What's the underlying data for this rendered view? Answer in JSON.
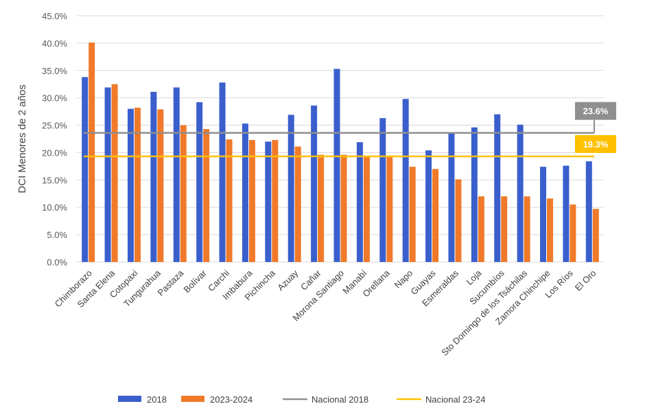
{
  "chart_data": {
    "type": "bar",
    "ylabel": "DCI Menores de 2 años",
    "ylim": [
      0,
      45
    ],
    "yticks": [
      0,
      5,
      10,
      15,
      20,
      25,
      30,
      35,
      40,
      45
    ],
    "ytick_labels": [
      "0.0%",
      "5.0%",
      "10.0%",
      "15.0%",
      "20.0%",
      "25.0%",
      "30.0%",
      "35.0%",
      "40.0%",
      "45.0%"
    ],
    "grid": true,
    "legend_position": "bottom",
    "categories": [
      "Chimborazo",
      "Santa Elena",
      "Cotopaxi",
      "Tungurahua",
      "Pastaza",
      "Bolívar",
      "Carchi",
      "Imbabura",
      "Pichincha",
      "Azuay",
      "Cañar",
      "Morona Santiago",
      "Manabí",
      "Orellana",
      "Napo",
      "Guayas",
      "Esmeraldas",
      "Loja",
      "Sucumbíos",
      "Sto Domingo de los Tsáchilas",
      "Zamora Chinchipe",
      "Los Ríos",
      "El Oro"
    ],
    "series": [
      {
        "name": "2018",
        "color": "#3a5fcd",
        "values": [
          33.8,
          31.9,
          28.0,
          31.1,
          31.9,
          29.2,
          32.8,
          25.3,
          22.0,
          26.9,
          28.6,
          35.3,
          21.9,
          26.3,
          29.8,
          20.4,
          23.5,
          24.6,
          27.0,
          25.1,
          17.4,
          17.6,
          18.4
        ]
      },
      {
        "name": "2023-2024",
        "color": "#f07a2a",
        "values": [
          40.1,
          32.5,
          28.2,
          27.9,
          25.0,
          24.3,
          22.4,
          22.3,
          22.3,
          21.1,
          19.6,
          19.6,
          19.3,
          19.3,
          17.4,
          17.0,
          15.1,
          12.0,
          12.0,
          12.0,
          11.6,
          10.5,
          9.7
        ]
      }
    ],
    "reference_lines": [
      {
        "name": "Nacional 2018",
        "value": 23.6,
        "label": "23.6%",
        "color": "#8f8f8f"
      },
      {
        "name": "Nacional 23-24",
        "value": 19.3,
        "label": "19.3%",
        "color": "#ffc000"
      }
    ]
  }
}
